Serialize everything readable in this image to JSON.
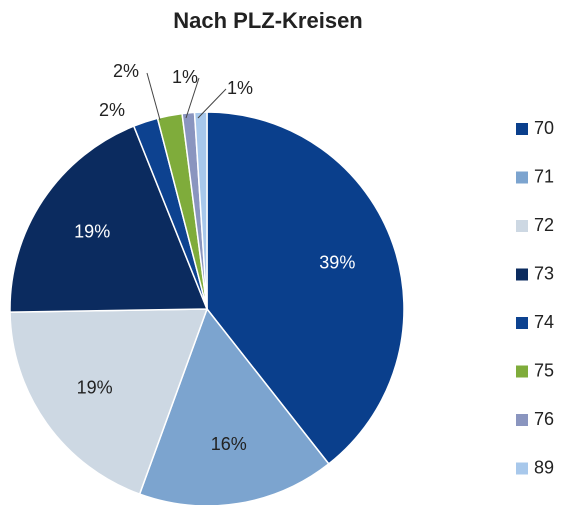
{
  "chart_data": {
    "type": "pie",
    "title": "Nach PLZ-Kreisen",
    "categories": [
      "70",
      "71",
      "72",
      "73",
      "74",
      "75",
      "76",
      "89"
    ],
    "values": [
      39,
      16,
      19,
      19,
      2,
      2,
      1,
      1
    ],
    "value_labels": [
      "39%",
      "16%",
      "19%",
      "19%",
      "2%",
      "2%",
      "1%",
      "1%"
    ],
    "colors": [
      "#0a3f8c",
      "#7ca4cf",
      "#cdd8e3",
      "#0b2b5f",
      "#0d4290",
      "#7fac3b",
      "#8a95bf",
      "#a8c8eb"
    ]
  }
}
